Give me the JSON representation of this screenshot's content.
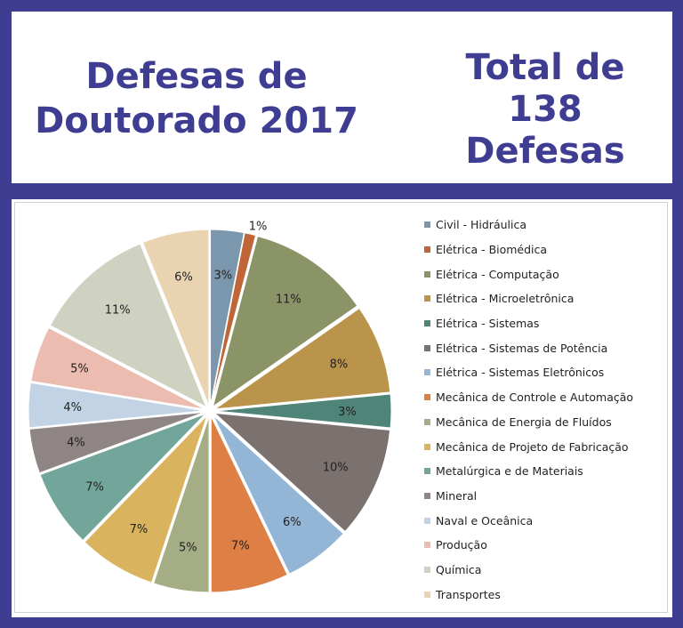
{
  "header": {
    "title_line1": "Defesas de",
    "title_line2": "Doutorado 2017",
    "total_line1": "Total de",
    "total_line2": "138",
    "total_line3": "Defesas"
  },
  "chart_data": {
    "type": "pie",
    "title": "",
    "legend_position": "right",
    "slices": [
      {
        "name": "Civil - Hidráulica",
        "value": 3,
        "label": "3%",
        "color": "#7a97ad"
      },
      {
        "name": "Elétrica - Biomédica",
        "value": 1,
        "label": "1%",
        "color": "#c06537"
      },
      {
        "name": "Elétrica - Computação",
        "value": 11,
        "label": "11%",
        "color": "#8a9467"
      },
      {
        "name": "Elétrica - Microeletrônica",
        "value": 8,
        "label": "8%",
        "color": "#b9944a"
      },
      {
        "name": "Elétrica - Sistemas",
        "value": 3,
        "label": "3%",
        "color": "#4f8478"
      },
      {
        "name": "Elétrica - Sistemas de Potência",
        "value": 10,
        "label": "10%",
        "color": "#7b716f"
      },
      {
        "name": "Elétrica - Sistemas Eletrônicos",
        "value": 6,
        "label": "6%",
        "color": "#93b5d6"
      },
      {
        "name": "Mecânica de Controle e Automação",
        "value": 7,
        "label": "7%",
        "color": "#de7f46"
      },
      {
        "name": "Mecânica de Energia de Fluídos",
        "value": 5,
        "label": "5%",
        "color": "#a4ad84"
      },
      {
        "name": "Mecânica de Projeto de Fabricação",
        "value": 7,
        "label": "7%",
        "color": "#d9b35d"
      },
      {
        "name": "Metalúrgica e de Materiais",
        "value": 7,
        "label": "7%",
        "color": "#72a69a"
      },
      {
        "name": "Mineral",
        "value": 4,
        "label": "4%",
        "color": "#8f8585"
      },
      {
        "name": "Naval e Oceânica",
        "value": 4,
        "label": "4%",
        "color": "#c1d3e4"
      },
      {
        "name": "Produção",
        "value": 5,
        "label": "5%",
        "color": "#ebbcaf"
      },
      {
        "name": "Química",
        "value": 11,
        "label": "11%",
        "color": "#cfd2c1"
      },
      {
        "name": "Transportes",
        "value": 6,
        "label": "6%",
        "color": "#e9d3b0"
      }
    ]
  }
}
